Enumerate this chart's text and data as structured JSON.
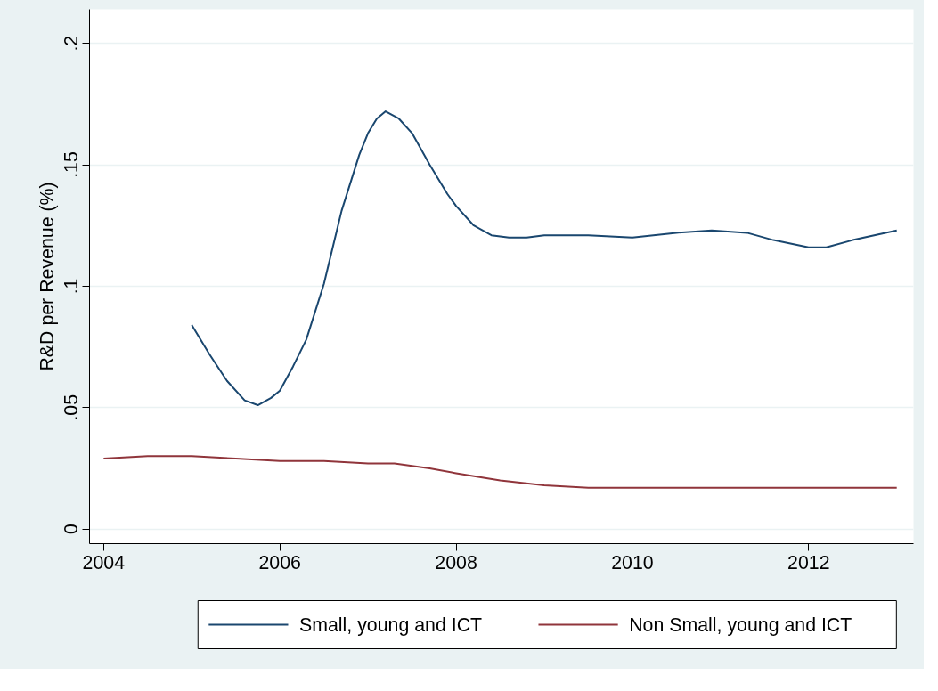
{
  "chart_data": {
    "type": "line",
    "ylabel": "R&D per Revenue (%)",
    "xlim": [
      2003.84,
      2013.19
    ],
    "xticks": [
      2004,
      2006,
      2008,
      2010,
      2012
    ],
    "ylim": [
      -0.006,
      0.214
    ],
    "yticks": [
      {
        "value": 0,
        "label": "0"
      },
      {
        "value": 0.05,
        "label": ".05"
      },
      {
        "value": 0.1,
        "label": ".1"
      },
      {
        "value": 0.15,
        "label": ".15"
      },
      {
        "value": 0.2,
        "label": ".2"
      }
    ],
    "grid": "y",
    "legend": "bottom",
    "line_style": "solid",
    "series": [
      {
        "name": "Small, young and ICT",
        "color": "#1a476f",
        "x": [
          2005.0,
          2005.2,
          2005.4,
          2005.6,
          2005.75,
          2005.9,
          2006.0,
          2006.15,
          2006.3,
          2006.5,
          2006.7,
          2006.9,
          2007.0,
          2007.1,
          2007.2,
          2007.35,
          2007.5,
          2007.7,
          2007.9,
          2008.0,
          2008.2,
          2008.4,
          2008.6,
          2008.8,
          2009.0,
          2009.2,
          2009.5,
          2010.0,
          2010.5,
          2010.9,
          2011.3,
          2011.6,
          2012.0,
          2012.2,
          2012.5,
          2013.0
        ],
        "values": [
          0.084,
          0.072,
          0.061,
          0.053,
          0.051,
          0.054,
          0.057,
          0.067,
          0.078,
          0.101,
          0.131,
          0.154,
          0.163,
          0.169,
          0.172,
          0.169,
          0.163,
          0.15,
          0.138,
          0.133,
          0.125,
          0.121,
          0.12,
          0.12,
          0.121,
          0.121,
          0.121,
          0.12,
          0.122,
          0.123,
          0.122,
          0.119,
          0.116,
          0.116,
          0.119,
          0.123
        ]
      },
      {
        "name": "Non Small, young and ICT",
        "color": "#90353b",
        "x": [
          2004.0,
          2004.5,
          2004.75,
          2005.0,
          2005.5,
          2006.0,
          2006.5,
          2007.0,
          2007.3,
          2007.7,
          2008.0,
          2008.5,
          2009.0,
          2009.5,
          2010.0,
          2011.0,
          2012.0,
          2013.0
        ],
        "values": [
          0.029,
          0.03,
          0.03,
          0.03,
          0.029,
          0.028,
          0.028,
          0.027,
          0.027,
          0.025,
          0.023,
          0.02,
          0.018,
          0.017,
          0.017,
          0.017,
          0.017,
          0.017
        ]
      }
    ]
  }
}
